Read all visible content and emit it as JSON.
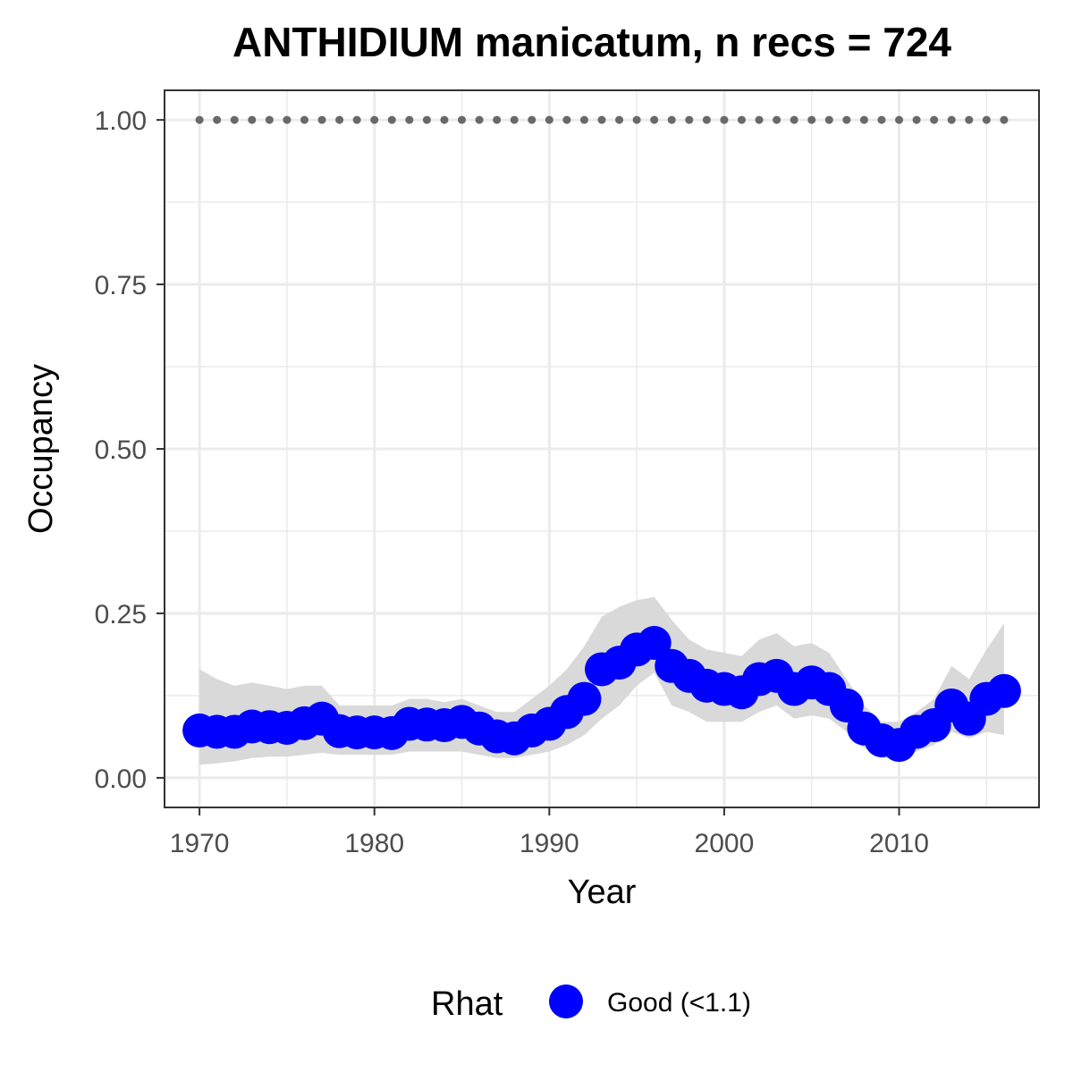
{
  "chart_data": {
    "type": "line",
    "title": "ANTHIDIUM manicatum, n recs = 724",
    "xlabel": "Year",
    "ylabel": "Occupancy",
    "xlim": [
      1968,
      2018
    ],
    "ylim": [
      -0.045,
      1.045
    ],
    "x_ticks": [
      1970,
      1980,
      1990,
      2000,
      2010
    ],
    "x_tick_labels": [
      "1970",
      "1980",
      "1990",
      "2000",
      "2010"
    ],
    "y_ticks": [
      0,
      0.25,
      0.5,
      0.75,
      1.0
    ],
    "y_tick_labels": [
      "0.00",
      "0.25",
      "0.50",
      "0.75",
      "1.00"
    ],
    "grid": true,
    "legend": {
      "title": "Rhat",
      "position": "bottom",
      "entries": [
        {
          "label": "Good (<1.1)",
          "color": "#0000ff"
        }
      ]
    },
    "colors": {
      "points": "#0000ff",
      "ribbon": "#d9d9d9",
      "reference": "#696969",
      "grid": "#ebebeb",
      "border": "#333333"
    },
    "reference_line": {
      "y": 1.0,
      "style": "dotted"
    },
    "series": [
      {
        "name": "Occupancy (Good (<1.1))",
        "x": [
          1970,
          1971,
          1972,
          1973,
          1974,
          1975,
          1976,
          1977,
          1978,
          1979,
          1980,
          1981,
          1982,
          1983,
          1984,
          1985,
          1986,
          1987,
          1988,
          1989,
          1990,
          1991,
          1992,
          1993,
          1994,
          1995,
          1996,
          1997,
          1998,
          1999,
          2000,
          2001,
          2002,
          2003,
          2004,
          2005,
          2006,
          2007,
          2008,
          2009,
          2010,
          2011,
          2012,
          2013,
          2014,
          2015,
          2016
        ],
        "y": [
          0.072,
          0.07,
          0.07,
          0.078,
          0.077,
          0.076,
          0.083,
          0.09,
          0.071,
          0.069,
          0.069,
          0.068,
          0.082,
          0.081,
          0.08,
          0.085,
          0.075,
          0.063,
          0.06,
          0.072,
          0.082,
          0.1,
          0.12,
          0.165,
          0.175,
          0.195,
          0.205,
          0.17,
          0.155,
          0.14,
          0.135,
          0.13,
          0.15,
          0.155,
          0.135,
          0.145,
          0.135,
          0.11,
          0.075,
          0.057,
          0.05,
          0.07,
          0.08,
          0.11,
          0.09,
          0.12,
          0.132
        ],
        "lower": [
          0.02,
          0.022,
          0.025,
          0.03,
          0.032,
          0.032,
          0.035,
          0.038,
          0.035,
          0.035,
          0.035,
          0.035,
          0.04,
          0.04,
          0.04,
          0.04,
          0.035,
          0.03,
          0.03,
          0.035,
          0.04,
          0.05,
          0.065,
          0.09,
          0.11,
          0.14,
          0.16,
          0.11,
          0.1,
          0.085,
          0.085,
          0.085,
          0.1,
          0.11,
          0.09,
          0.095,
          0.09,
          0.07,
          0.045,
          0.03,
          0.03,
          0.04,
          0.05,
          0.07,
          0.06,
          0.07,
          0.065
        ],
        "upper": [
          0.165,
          0.15,
          0.14,
          0.145,
          0.14,
          0.135,
          0.14,
          0.14,
          0.11,
          0.11,
          0.11,
          0.11,
          0.12,
          0.12,
          0.115,
          0.12,
          0.11,
          0.1,
          0.1,
          0.12,
          0.14,
          0.165,
          0.2,
          0.245,
          0.26,
          0.27,
          0.275,
          0.24,
          0.21,
          0.195,
          0.19,
          0.185,
          0.21,
          0.22,
          0.2,
          0.205,
          0.19,
          0.15,
          0.11,
          0.085,
          0.085,
          0.1,
          0.12,
          0.17,
          0.15,
          0.195,
          0.235
        ]
      }
    ]
  }
}
